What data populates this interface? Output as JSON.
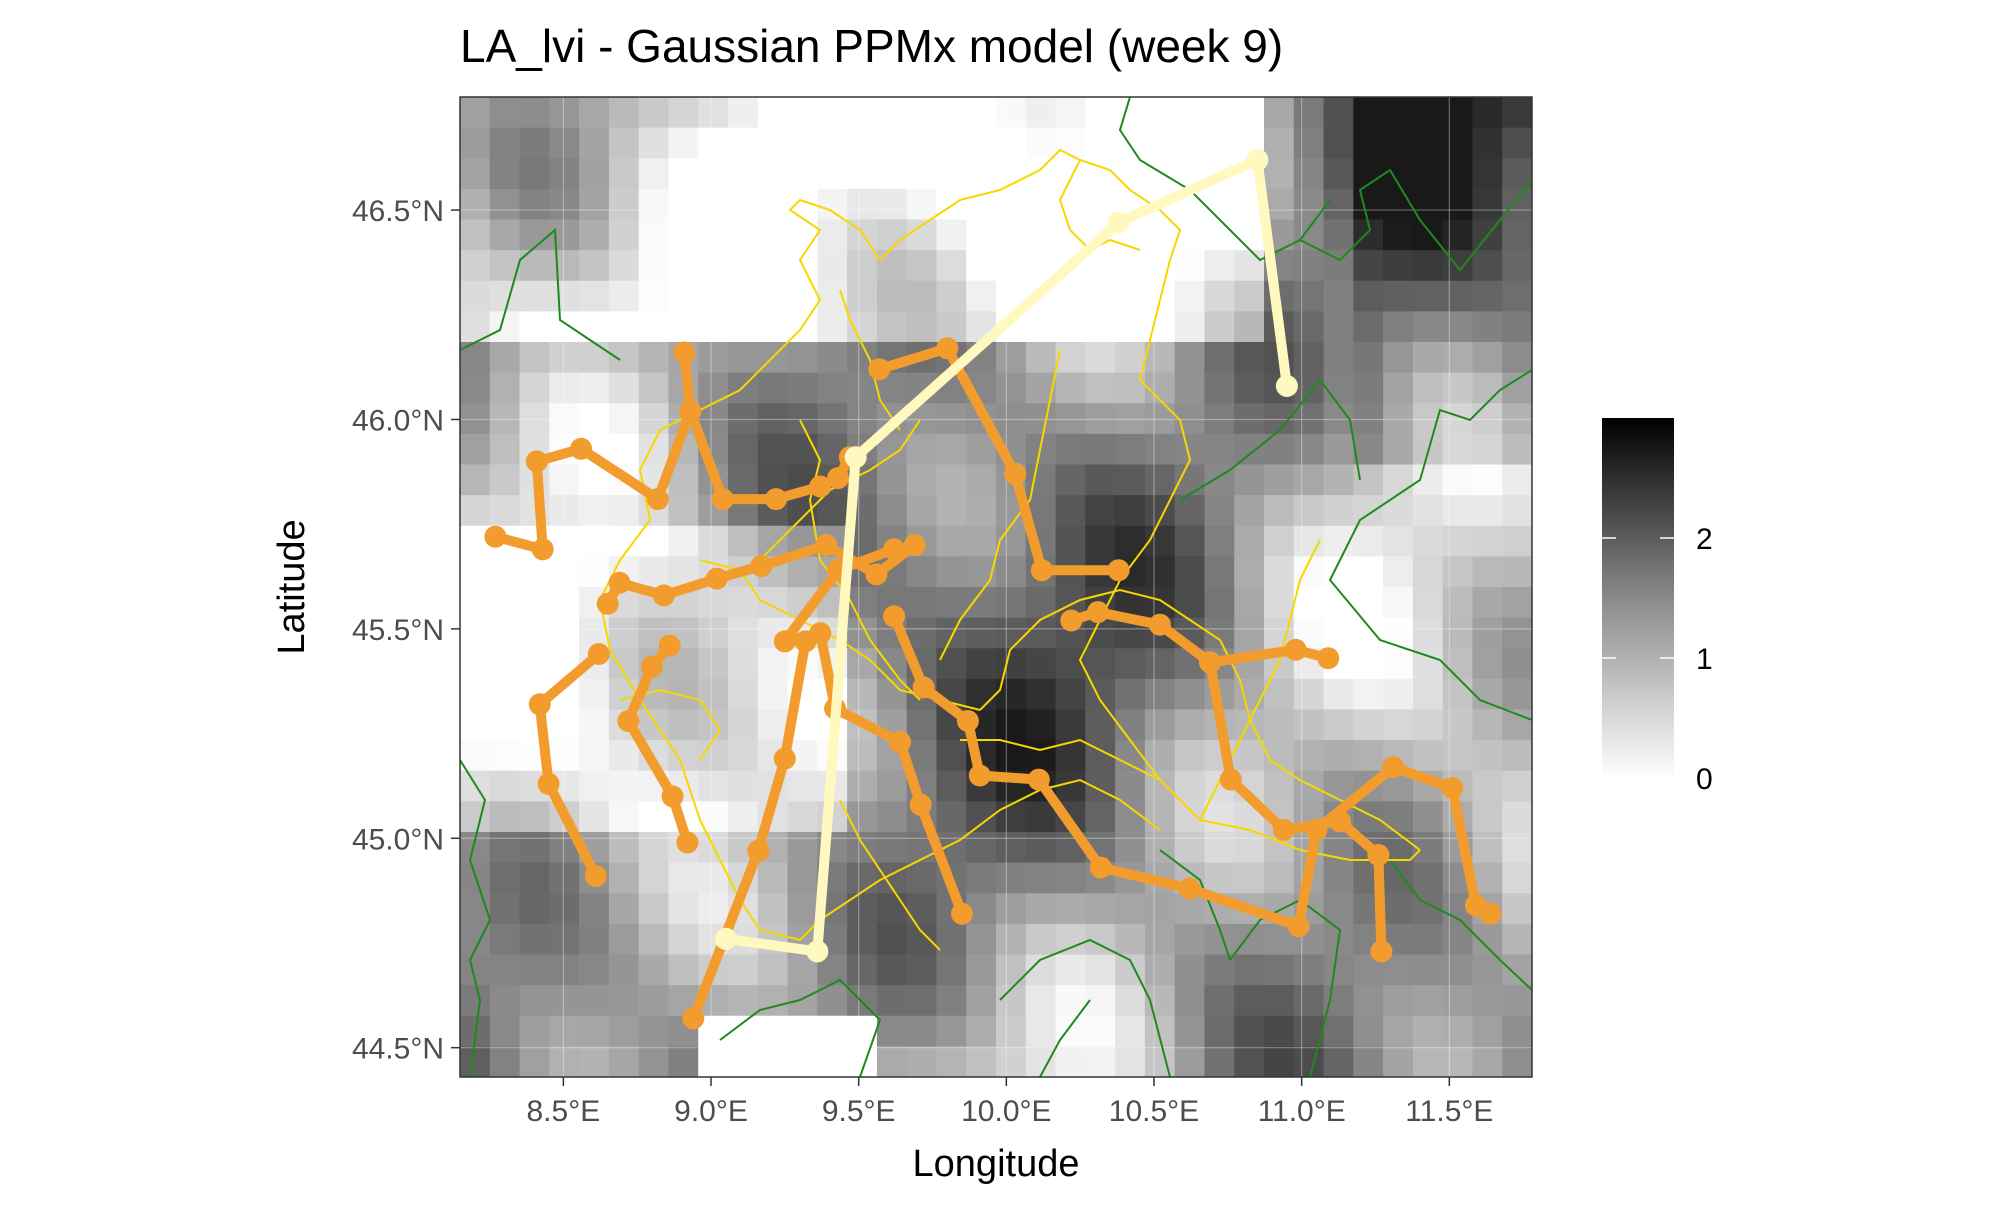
{
  "title": "LA_lvi - Gaussian PPMx model (week 9)",
  "x_axis": {
    "label": "Longitude",
    "ticks": [
      "8.5°E",
      "9.0°E",
      "9.5°E",
      "10.0°E",
      "10.5°E",
      "11.0°E",
      "11.5°E"
    ],
    "tick_values": [
      8.5,
      9.0,
      9.5,
      10.0,
      10.5,
      11.0,
      11.5
    ],
    "range": [
      8.15,
      11.78
    ]
  },
  "y_axis": {
    "label": "Latitude",
    "ticks": [
      "44.5°N",
      "45.0°N",
      "45.5°N",
      "46.0°N",
      "46.5°N"
    ],
    "tick_values": [
      44.5,
      45.0,
      45.5,
      46.0,
      46.5
    ],
    "range": [
      44.43,
      46.77
    ]
  },
  "legend": {
    "placement": "right",
    "type": "grayscale colorbar",
    "range": [
      0,
      3
    ],
    "ticks": [
      "0",
      "1",
      "2"
    ],
    "tick_values": [
      0,
      1,
      2
    ]
  },
  "colors": {
    "path_orange": "#F39C2E",
    "path_light": "#FFF8BF",
    "province_border": "#F5D800",
    "country_border": "#1E8A1E"
  },
  "chart_data": {
    "type": "heatmap",
    "raster_description": "grayscale gridded values over the map extent, darker = higher",
    "paths": [
      {
        "color": "light",
        "points": [
          [
            9.05,
            44.76
          ],
          [
            9.36,
            44.73
          ],
          [
            9.49,
            45.91
          ],
          [
            10.38,
            46.47
          ],
          [
            10.85,
            46.62
          ],
          [
            10.95,
            46.08
          ]
        ]
      },
      {
        "color": "orange",
        "points": [
          [
            8.27,
            45.72
          ],
          [
            8.43,
            45.69
          ],
          [
            8.41,
            45.9
          ],
          [
            8.56,
            45.93
          ],
          [
            8.82,
            45.81
          ],
          [
            8.93,
            46.02
          ],
          [
            8.91,
            46.16
          ],
          [
            8.93,
            46.02
          ],
          [
            9.04,
            45.81
          ],
          [
            9.22,
            45.81
          ],
          [
            9.37,
            45.84
          ],
          [
            9.43,
            45.86
          ],
          [
            9.47,
            45.91
          ]
        ]
      },
      {
        "color": "orange",
        "points": [
          [
            8.62,
            45.44
          ],
          [
            8.42,
            45.32
          ],
          [
            8.45,
            45.13
          ],
          [
            8.61,
            44.91
          ]
        ]
      },
      {
        "color": "orange",
        "points": [
          [
            8.86,
            45.46
          ],
          [
            8.8,
            45.41
          ],
          [
            8.72,
            45.28
          ],
          [
            8.87,
            45.1
          ],
          [
            8.92,
            44.99
          ]
        ]
      },
      {
        "color": "orange",
        "points": [
          [
            8.65,
            45.56
          ],
          [
            8.69,
            45.61
          ],
          [
            8.84,
            45.58
          ],
          [
            9.02,
            45.62
          ],
          [
            9.17,
            45.65
          ],
          [
            9.39,
            45.7
          ],
          [
            9.56,
            45.63
          ],
          [
            9.69,
            45.7
          ]
        ]
      },
      {
        "color": "orange",
        "points": [
          [
            9.32,
            45.47
          ],
          [
            9.25,
            45.19
          ],
          [
            9.16,
            44.97
          ],
          [
            8.94,
            44.57
          ]
        ]
      },
      {
        "color": "orange",
        "points": [
          [
            9.62,
            45.69
          ],
          [
            9.43,
            45.64
          ],
          [
            9.25,
            45.47
          ],
          [
            9.37,
            45.49
          ],
          [
            9.42,
            45.31
          ],
          [
            9.64,
            45.23
          ],
          [
            9.71,
            45.08
          ],
          [
            9.85,
            44.82
          ]
        ]
      },
      {
        "color": "orange",
        "points": [
          [
            9.62,
            45.53
          ],
          [
            9.72,
            45.36
          ],
          [
            9.87,
            45.28
          ],
          [
            9.91,
            45.15
          ],
          [
            10.11,
            45.14
          ],
          [
            10.32,
            44.93
          ],
          [
            10.62,
            44.88
          ],
          [
            10.99,
            44.79
          ],
          [
            11.05,
            45.02
          ],
          [
            11.31,
            45.17
          ],
          [
            11.51,
            45.12
          ],
          [
            11.59,
            44.84
          ],
          [
            11.64,
            44.82
          ]
        ]
      },
      {
        "color": "orange",
        "points": [
          [
            9.57,
            46.12
          ],
          [
            9.8,
            46.17
          ],
          [
            10.03,
            45.87
          ],
          [
            10.12,
            45.64
          ],
          [
            10.38,
            45.64
          ]
        ]
      },
      {
        "color": "orange",
        "points": [
          [
            10.22,
            45.52
          ],
          [
            10.31,
            45.54
          ],
          [
            10.52,
            45.51
          ],
          [
            10.69,
            45.42
          ],
          [
            10.98,
            45.45
          ],
          [
            11.09,
            45.43
          ]
        ]
      },
      {
        "color": "orange",
        "points": [
          [
            10.69,
            45.42
          ],
          [
            10.76,
            45.14
          ],
          [
            10.94,
            45.02
          ],
          [
            11.13,
            45.04
          ],
          [
            11.26,
            44.96
          ],
          [
            11.27,
            44.73
          ]
        ]
      }
    ],
    "xlabel": "Longitude",
    "ylabel": "Latitude",
    "xlim": [
      8.15,
      11.78
    ],
    "ylim": [
      44.43,
      46.77
    ],
    "grid": true
  }
}
